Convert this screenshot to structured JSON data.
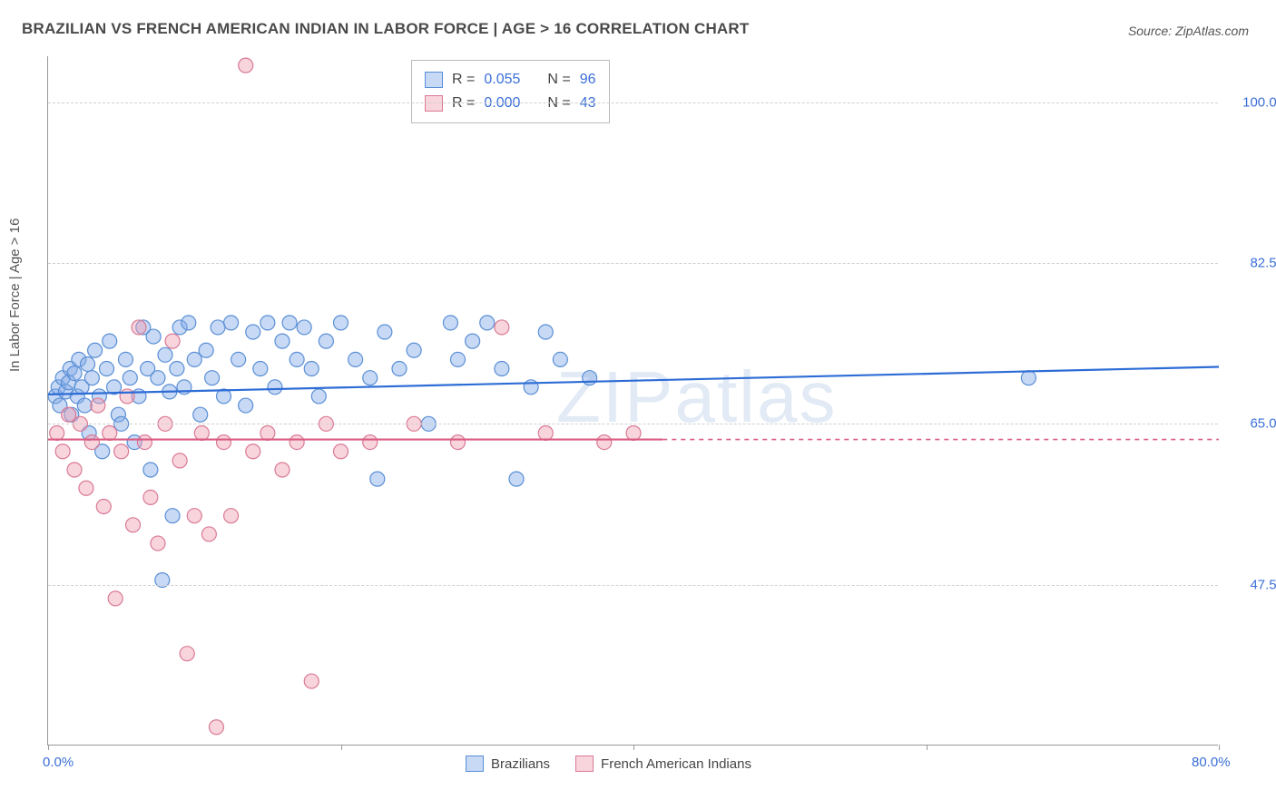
{
  "title": "BRAZILIAN VS FRENCH AMERICAN INDIAN IN LABOR FORCE | AGE > 16 CORRELATION CHART",
  "source": "Source: ZipAtlas.com",
  "ylabel": "In Labor Force | Age > 16",
  "watermark": "ZIPatlas",
  "chart": {
    "type": "scatter",
    "background_color": "#ffffff",
    "grid_color": "#d0d0d0",
    "axis_color": "#999999",
    "text_color": "#555555",
    "value_color": "#3b6fd8",
    "xlim": [
      0,
      80
    ],
    "ylim": [
      30,
      105
    ],
    "y_gridlines": [
      47.5,
      65.0,
      82.5,
      100.0
    ],
    "y_tick_labels": [
      "47.5%",
      "65.0%",
      "82.5%",
      "100.0%"
    ],
    "x_ticks": [
      0,
      20,
      40,
      60,
      80
    ],
    "x_tick_major_labels": {
      "0": "0.0%",
      "80": "80.0%"
    },
    "marker_radius": 8,
    "marker_stroke_width": 1.2,
    "trend_line_width": 2.2,
    "series": [
      {
        "name": "Brazilians",
        "fill": "rgba(130,170,230,0.45)",
        "stroke": "#5a8fd6",
        "trend_color": "#2d6cd6",
        "trend": {
          "x0": 0,
          "y0": 68.2,
          "x1": 80,
          "y1": 71.2,
          "dashed": false,
          "solid_until": 80
        },
        "R": "0.055",
        "N": "96",
        "points": [
          [
            0.5,
            68
          ],
          [
            0.7,
            69
          ],
          [
            0.8,
            67
          ],
          [
            1.0,
            70
          ],
          [
            1.2,
            68.5
          ],
          [
            1.4,
            69.5
          ],
          [
            1.5,
            71
          ],
          [
            1.6,
            66
          ],
          [
            1.8,
            70.5
          ],
          [
            2.0,
            68
          ],
          [
            2.1,
            72
          ],
          [
            2.3,
            69
          ],
          [
            2.5,
            67
          ],
          [
            2.7,
            71.5
          ],
          [
            2.8,
            64
          ],
          [
            3.0,
            70
          ],
          [
            3.2,
            73
          ],
          [
            3.5,
            68
          ],
          [
            3.7,
            62
          ],
          [
            4.0,
            71
          ],
          [
            4.2,
            74
          ],
          [
            4.5,
            69
          ],
          [
            4.8,
            66
          ],
          [
            5.0,
            65
          ],
          [
            5.3,
            72
          ],
          [
            5.6,
            70
          ],
          [
            5.9,
            63
          ],
          [
            6.2,
            68
          ],
          [
            6.5,
            75.5
          ],
          [
            6.8,
            71
          ],
          [
            7,
            60
          ],
          [
            7.2,
            74.5
          ],
          [
            7.5,
            70
          ],
          [
            7.8,
            48
          ],
          [
            8.0,
            72.5
          ],
          [
            8.3,
            68.5
          ],
          [
            8.5,
            55
          ],
          [
            8.8,
            71
          ],
          [
            9.0,
            75.5
          ],
          [
            9.3,
            69
          ],
          [
            9.6,
            76
          ],
          [
            10,
            72
          ],
          [
            10.4,
            66
          ],
          [
            10.8,
            73
          ],
          [
            11.2,
            70
          ],
          [
            11.6,
            75.5
          ],
          [
            12,
            68
          ],
          [
            12.5,
            76
          ],
          [
            13,
            72
          ],
          [
            13.5,
            67
          ],
          [
            14,
            75
          ],
          [
            14.5,
            71
          ],
          [
            15,
            76
          ],
          [
            15.5,
            69
          ],
          [
            16,
            74
          ],
          [
            16.5,
            76
          ],
          [
            17,
            72
          ],
          [
            17.5,
            75.5
          ],
          [
            18,
            71
          ],
          [
            18.5,
            68
          ],
          [
            19,
            74
          ],
          [
            20,
            76
          ],
          [
            21,
            72
          ],
          [
            22,
            70
          ],
          [
            22.5,
            59
          ],
          [
            23,
            75
          ],
          [
            24,
            71
          ],
          [
            25,
            73
          ],
          [
            26,
            65
          ],
          [
            27.5,
            76
          ],
          [
            28,
            72
          ],
          [
            29,
            74
          ],
          [
            30,
            76
          ],
          [
            31,
            71
          ],
          [
            32,
            59
          ],
          [
            33,
            69
          ],
          [
            34,
            75
          ],
          [
            35,
            72
          ],
          [
            37,
            70
          ]
        ]
      },
      {
        "name": "French American Indians",
        "fill": "rgba(240,160,180,0.45)",
        "stroke": "#d97a95",
        "trend_color": "#db5a82",
        "trend": {
          "x0": 0,
          "y0": 63.3,
          "x1": 80,
          "y1": 63.3,
          "dashed": true,
          "solid_until": 42
        },
        "R": "0.000",
        "N": "43",
        "points": [
          [
            0.6,
            64
          ],
          [
            1.0,
            62
          ],
          [
            1.4,
            66
          ],
          [
            1.8,
            60
          ],
          [
            2.2,
            65
          ],
          [
            2.6,
            58
          ],
          [
            3,
            63
          ],
          [
            3.4,
            67
          ],
          [
            3.8,
            56
          ],
          [
            4.2,
            64
          ],
          [
            4.6,
            46
          ],
          [
            5,
            62
          ],
          [
            5.4,
            68
          ],
          [
            5.8,
            54
          ],
          [
            6.2,
            75.5
          ],
          [
            6.6,
            63
          ],
          [
            7,
            57
          ],
          [
            7.5,
            52
          ],
          [
            8,
            65
          ],
          [
            8.5,
            74
          ],
          [
            9,
            61
          ],
          [
            9.5,
            40
          ],
          [
            10,
            55
          ],
          [
            10.5,
            64
          ],
          [
            11,
            53
          ],
          [
            11.5,
            32
          ],
          [
            12,
            63
          ],
          [
            12.5,
            55
          ],
          [
            13.5,
            104
          ],
          [
            14,
            62
          ],
          [
            15,
            64
          ],
          [
            16,
            60
          ],
          [
            17,
            63
          ],
          [
            18,
            37
          ],
          [
            19,
            65
          ],
          [
            20,
            62
          ],
          [
            22,
            63
          ],
          [
            25,
            65
          ],
          [
            28,
            63
          ],
          [
            31,
            75.5
          ],
          [
            34,
            64
          ],
          [
            38,
            63
          ],
          [
            40,
            64
          ]
        ]
      }
    ],
    "extra_points": [
      {
        "series": 0,
        "x": 67,
        "y": 70
      }
    ]
  },
  "stats_box": {
    "rows": [
      {
        "swatch_fill": "rgba(130,170,230,0.45)",
        "swatch_stroke": "#5a8fd6",
        "R_label": "R",
        "R_val": "0.055",
        "N_label": "N",
        "N_val": "96"
      },
      {
        "swatch_fill": "rgba(240,160,180,0.45)",
        "swatch_stroke": "#d97a95",
        "R_label": "R",
        "R_val": "0.000",
        "N_label": "N",
        "N_val": "43"
      }
    ]
  },
  "bottom_legend": [
    {
      "label": "Brazilians",
      "fill": "rgba(130,170,230,0.45)",
      "stroke": "#5a8fd6"
    },
    {
      "label": "French American Indians",
      "fill": "rgba(240,160,180,0.45)",
      "stroke": "#d97a95"
    }
  ]
}
